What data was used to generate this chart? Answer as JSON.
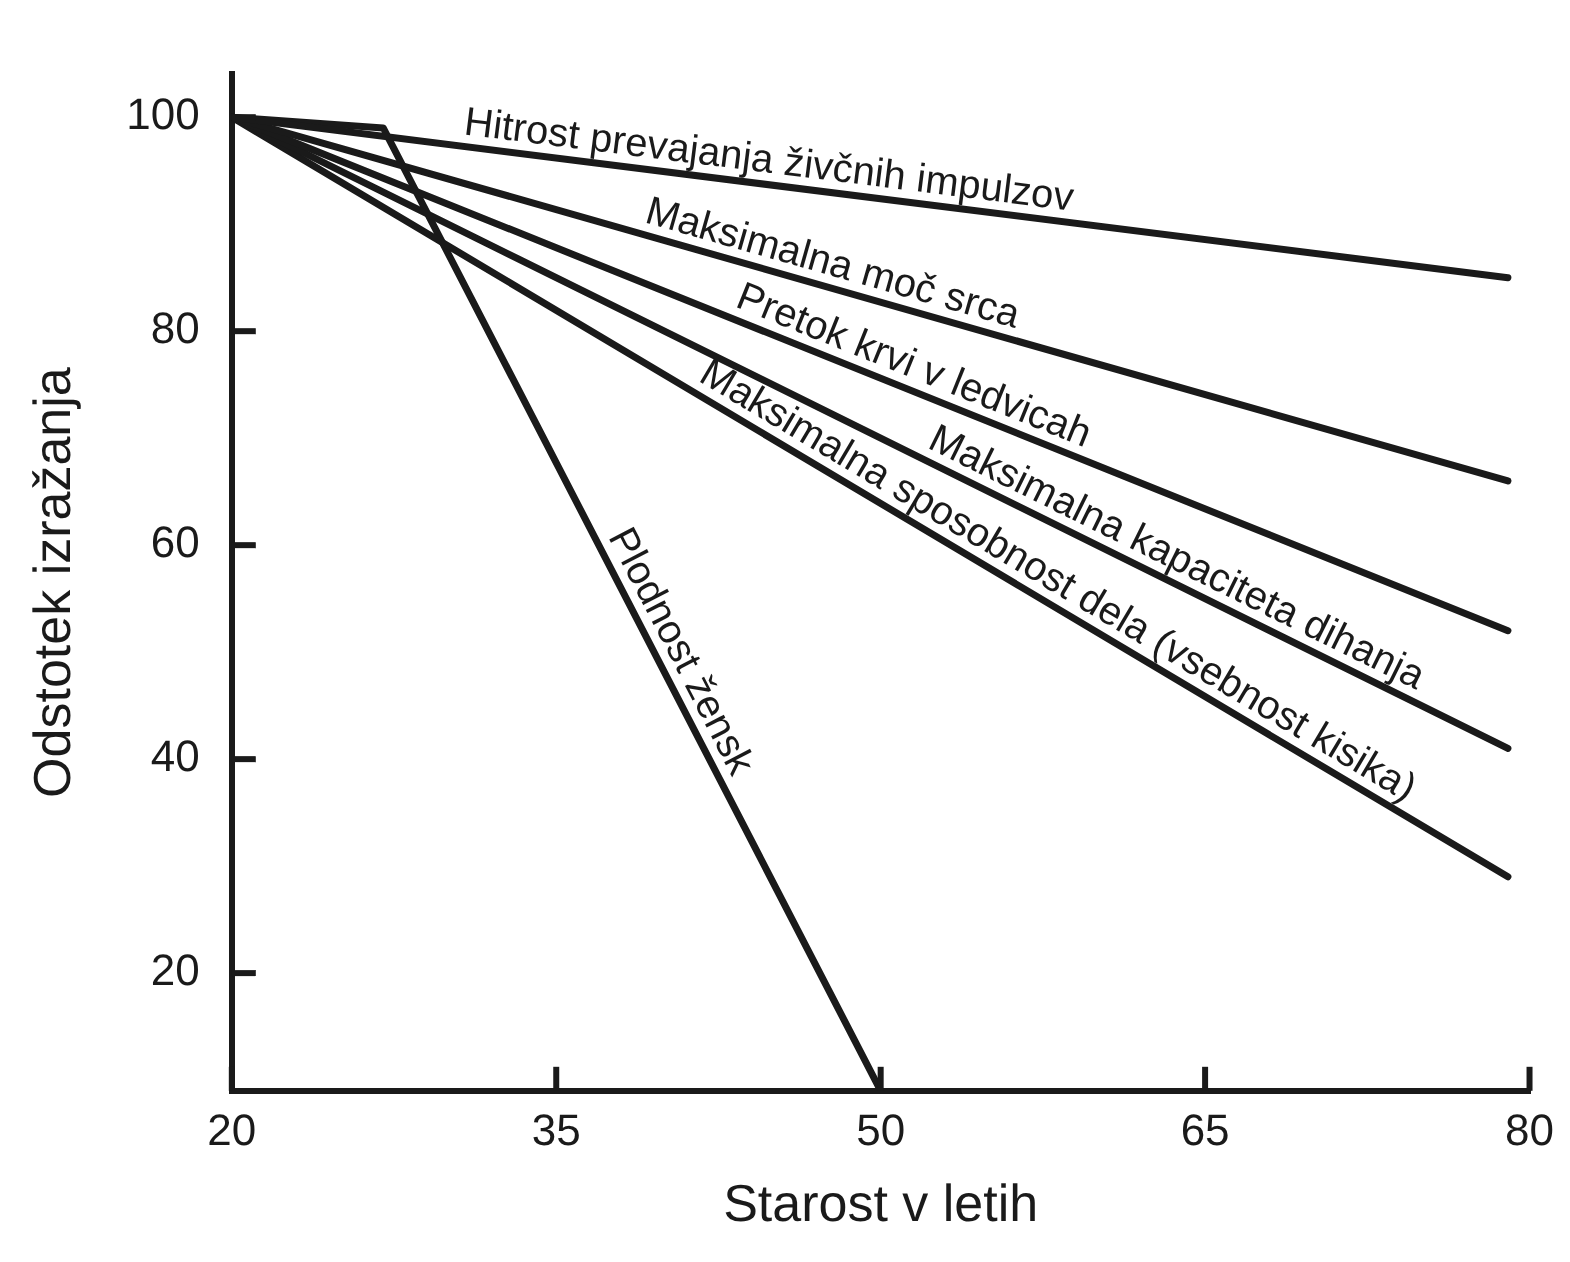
{
  "chart_data": {
    "type": "line",
    "xlabel": "Starost v letih",
    "ylabel": "Odstotek izražanja",
    "xlim": [
      20,
      80
    ],
    "xticks": [
      20,
      35,
      50,
      65,
      80
    ],
    "ylim": [
      9,
      104
    ],
    "yticks": [
      20,
      40,
      60,
      80,
      100
    ],
    "grid": false,
    "legend": false,
    "marker": "none",
    "line_style": "solid",
    "series": [
      {
        "name": "Hitrost prevajanja živčnih impulzov",
        "color": "#1a1a1a",
        "x": [
          20,
          79
        ],
        "values": [
          100,
          85
        ]
      },
      {
        "name": "Maksimalna moč srca",
        "color": "#1a1a1a",
        "x": [
          20,
          79
        ],
        "values": [
          100,
          66
        ]
      },
      {
        "name": "Pretok krvi v ledvicah",
        "color": "#1a1a1a",
        "x": [
          20,
          79
        ],
        "values": [
          100,
          52
        ]
      },
      {
        "name": "Maksimalna kapaciteta dihanja",
        "color": "#1a1a1a",
        "x": [
          20,
          79
        ],
        "values": [
          100,
          41
        ]
      },
      {
        "name": "Maksimalna sposobnost dela (vsebnost kisika)",
        "color": "#1a1a1a",
        "x": [
          20,
          79
        ],
        "values": [
          100,
          29
        ]
      },
      {
        "name": "Plodnost žensk",
        "color": "#1a1a1a",
        "x": [
          20,
          27,
          50
        ],
        "values": [
          100,
          99,
          9
        ]
      }
    ]
  }
}
